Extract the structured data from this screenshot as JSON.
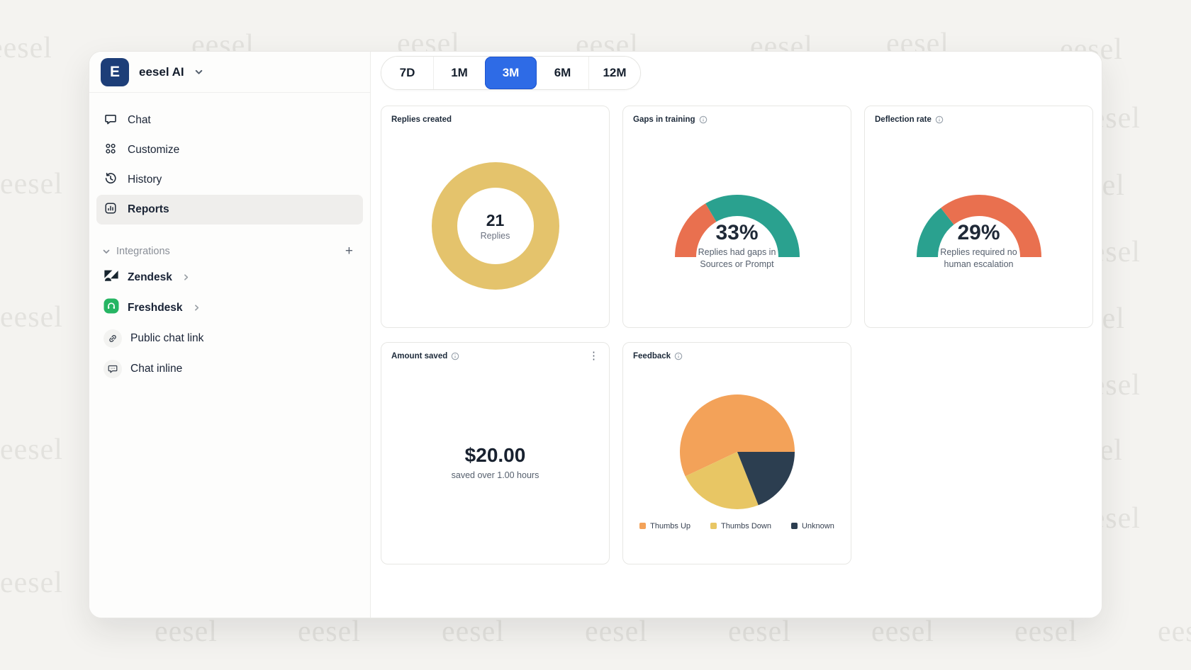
{
  "watermark": {
    "text": "eesel"
  },
  "brand": {
    "initial": "E",
    "name": "eesel AI"
  },
  "sidebar": {
    "nav": [
      {
        "label": "Chat",
        "active": false
      },
      {
        "label": "Customize",
        "active": false
      },
      {
        "label": "History",
        "active": false
      },
      {
        "label": "Reports",
        "active": true
      }
    ],
    "integrations": {
      "label": "Integrations",
      "add_label": "+",
      "items": [
        {
          "label": "Zendesk",
          "has_chevron": true
        },
        {
          "label": "Freshdesk",
          "has_chevron": true
        },
        {
          "label": "Public chat link",
          "has_chevron": false
        },
        {
          "label": "Chat inline",
          "has_chevron": false
        }
      ]
    }
  },
  "time_tabs": [
    {
      "label": "7D",
      "active": false
    },
    {
      "label": "1M",
      "active": false
    },
    {
      "label": "3M",
      "active": true
    },
    {
      "label": "6M",
      "active": false
    },
    {
      "label": "12M",
      "active": false
    }
  ],
  "cards": {
    "replies_created": {
      "title": "Replies created",
      "value": "21",
      "unit": "Replies",
      "color": "#e4c36c"
    },
    "gaps_in_training": {
      "title": "Gaps in training",
      "percent": 33,
      "percent_label": "33%",
      "subtitle_line1": "Replies had gaps in",
      "subtitle_line2": "Sources or Prompt",
      "fill_color": "#e9704f",
      "rest_color": "#2aa18f"
    },
    "deflection_rate": {
      "title": "Deflection rate",
      "percent": 29,
      "percent_label": "29%",
      "subtitle_line1": "Replies required no",
      "subtitle_line2": "human escalation",
      "fill_color": "#2aa18f",
      "rest_color": "#e9704f"
    },
    "amount_saved": {
      "title": "Amount saved",
      "value": "$20.00",
      "subtitle": "saved over 1.00 hours"
    },
    "feedback": {
      "title": "Feedback",
      "legend": [
        {
          "label": "Thumbs Up",
          "color": "#f3a259",
          "share": 57
        },
        {
          "label": "Thumbs Down",
          "color": "#e8c664",
          "share": 24
        },
        {
          "label": "Unknown",
          "color": "#2c3e50",
          "share": 19
        }
      ]
    }
  },
  "chart_data": [
    {
      "type": "pie",
      "title": "Replies created",
      "categories": [
        "Replies"
      ],
      "values": [
        21
      ],
      "note": "full gold donut ring"
    },
    {
      "type": "gauge",
      "title": "Gaps in training",
      "value": 33,
      "max": 100,
      "unit": "%"
    },
    {
      "type": "gauge",
      "title": "Deflection rate",
      "value": 29,
      "max": 100,
      "unit": "%"
    },
    {
      "type": "pie",
      "title": "Feedback",
      "categories": [
        "Thumbs Up",
        "Thumbs Down",
        "Unknown"
      ],
      "values": [
        57,
        24,
        19
      ],
      "legend_position": "bottom"
    }
  ]
}
